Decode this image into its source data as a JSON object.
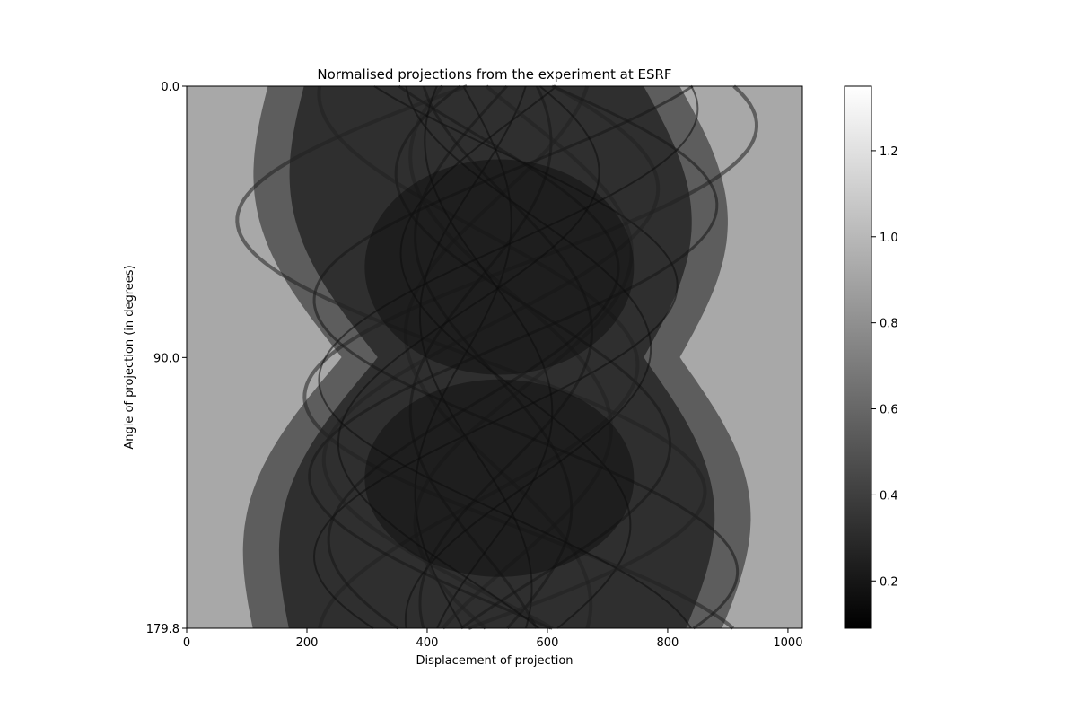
{
  "chart_data": {
    "type": "heatmap",
    "title": "Normalised projections from the experiment at ESRF",
    "xlabel": "Displacement of projection",
    "ylabel": "Angle of projection (in degrees)",
    "colormap": "gray",
    "x_range": [
      0,
      1024
    ],
    "y_range": [
      0.0,
      179.8
    ],
    "y_inverted": true,
    "x_ticks": [
      0,
      200,
      400,
      600,
      800,
      1000
    ],
    "x_tick_labels": [
      "0",
      "200",
      "400",
      "600",
      "800",
      "1000"
    ],
    "y_ticks": [
      0.0,
      90.0,
      179.8
    ],
    "y_tick_labels": [
      "0.0",
      "90.0",
      "179.8"
    ],
    "colorbar_range": [
      0.09,
      1.35
    ],
    "colorbar_ticks": [
      0.2,
      0.4,
      0.6,
      0.8,
      1.0,
      1.2
    ],
    "colorbar_tick_labels": [
      "0.2",
      "0.4",
      "0.6",
      "0.8",
      "1.0",
      "1.2"
    ],
    "sinogram": {
      "background_value": 0.92,
      "dark_core_value": 0.22,
      "object_edge_left_at_0deg": 135,
      "object_edge_right_at_0deg": 820,
      "object_edge_left_at_90deg": 258,
      "object_edge_right_at_90deg": 820,
      "object_edge_left_at_180deg": 110,
      "object_edge_right_at_180deg": 890,
      "rotation_center": 520
    }
  }
}
